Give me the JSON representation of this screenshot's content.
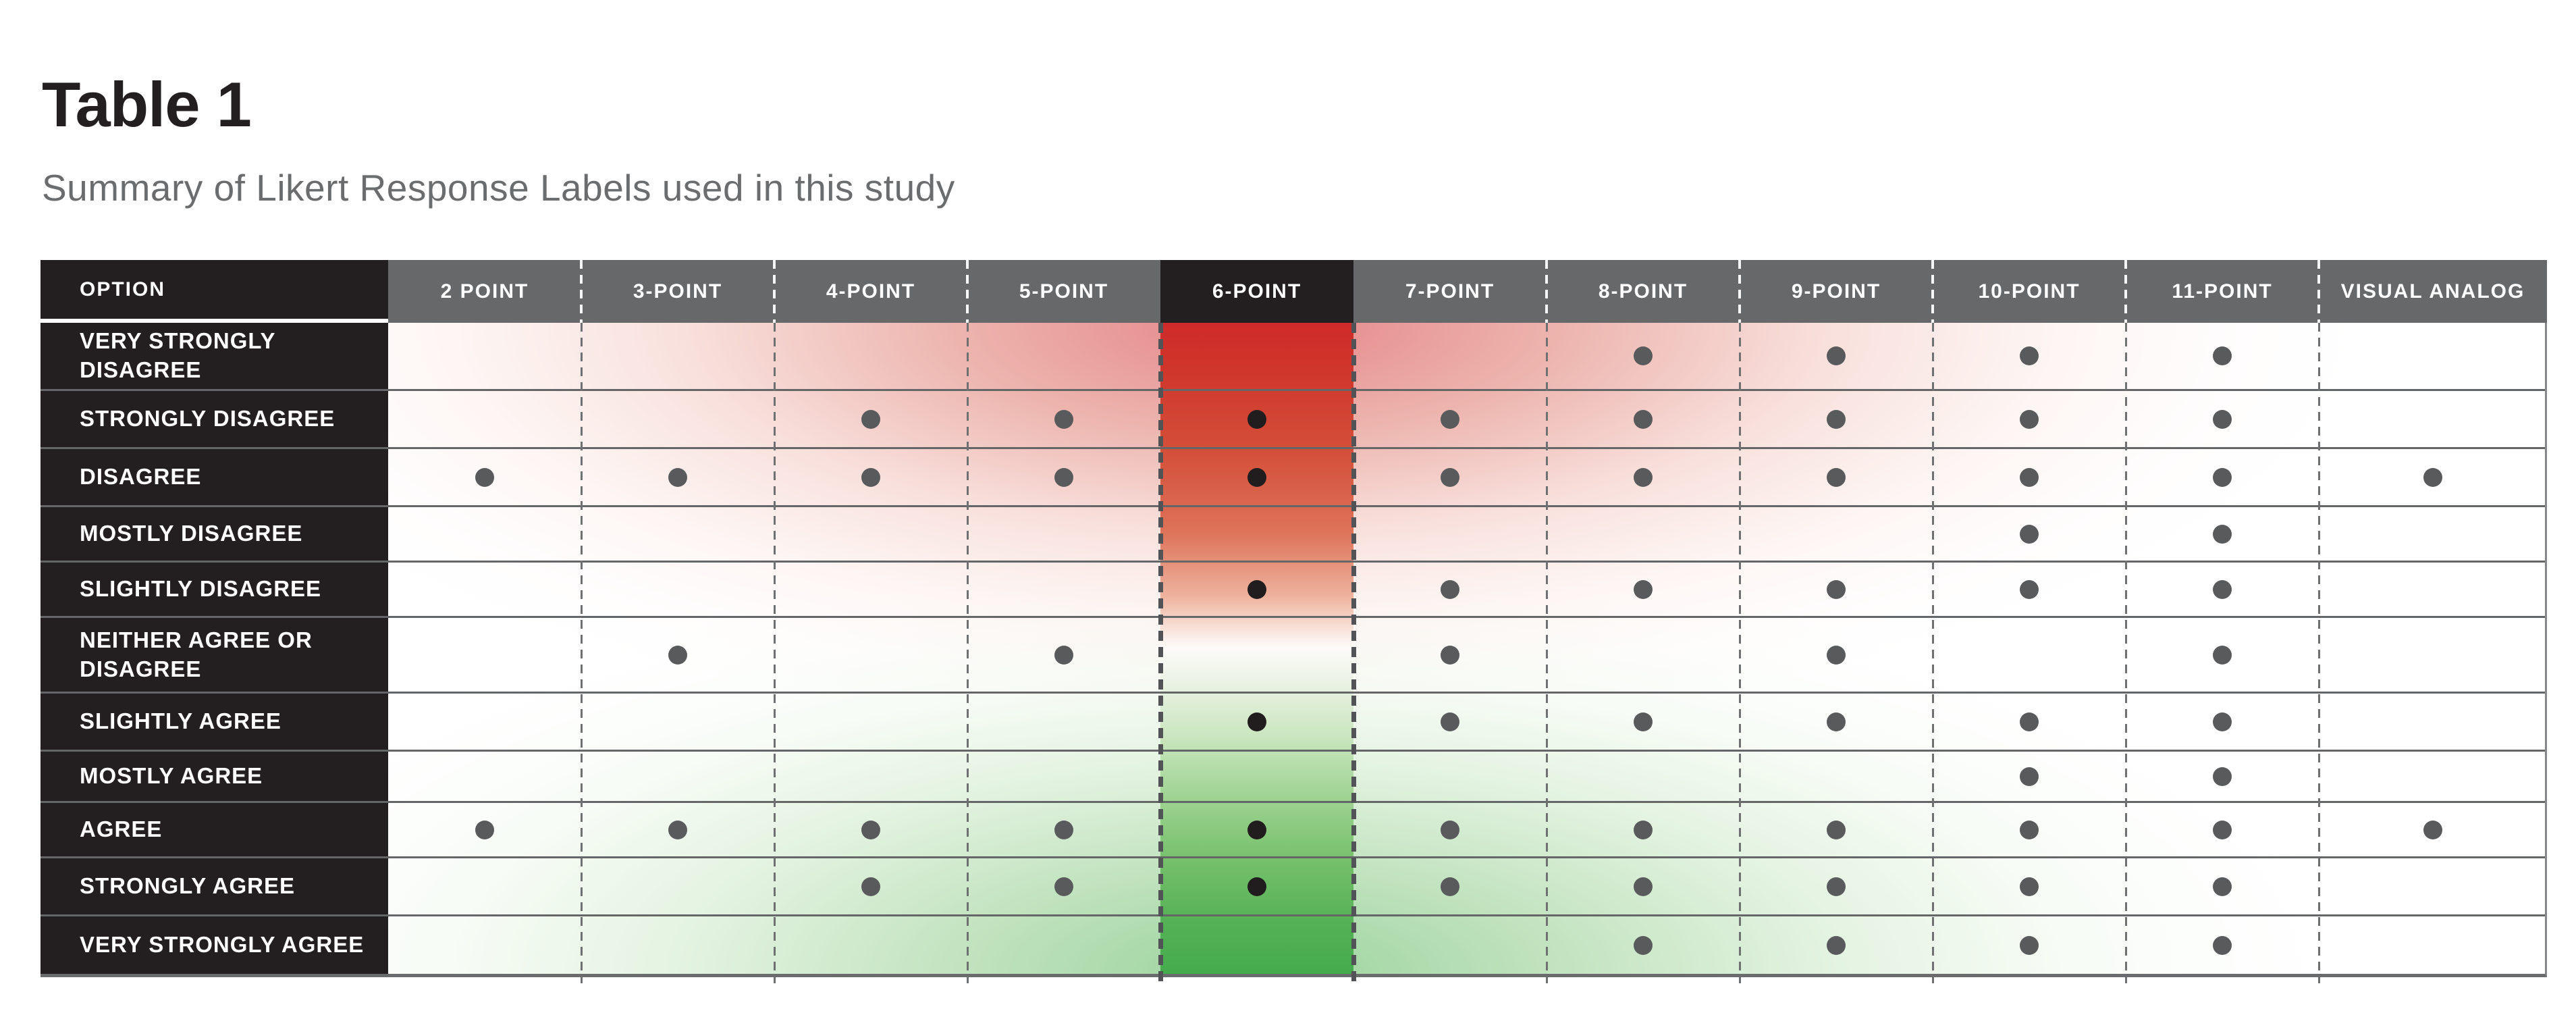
{
  "header": {
    "title": "Table 1",
    "subtitle": "Summary of Likert Response Labels used in this study"
  },
  "table": {
    "columns": [
      {
        "id": "option",
        "label": "OPTION",
        "highlight": true
      },
      {
        "id": "2-point",
        "label": "2 POINT",
        "highlight": false
      },
      {
        "id": "3-point",
        "label": "3-POINT",
        "highlight": false
      },
      {
        "id": "4-point",
        "label": "4-POINT",
        "highlight": false
      },
      {
        "id": "5-point",
        "label": "5-POINT",
        "highlight": false
      },
      {
        "id": "6-point",
        "label": "6-POINT",
        "highlight": true
      },
      {
        "id": "7-point",
        "label": "7-POINT",
        "highlight": false
      },
      {
        "id": "8-point",
        "label": "8-POINT",
        "highlight": false
      },
      {
        "id": "9-point",
        "label": "9-POINT",
        "highlight": false
      },
      {
        "id": "10-point",
        "label": "10-POINT",
        "highlight": false
      },
      {
        "id": "11-point",
        "label": "11-POINT",
        "highlight": false
      },
      {
        "id": "visual-analog",
        "label": "VISUAL ANALOG",
        "highlight": false
      }
    ],
    "rows": [
      {
        "label": "VERY STRONGLY DISAGREE",
        "dots": [
          "8-point",
          "9-point",
          "10-point",
          "11-point"
        ]
      },
      {
        "label": "STRONGLY DISAGREE",
        "dots": [
          "4-point",
          "5-point",
          "6-point",
          "7-point",
          "8-point",
          "9-point",
          "10-point",
          "11-point"
        ]
      },
      {
        "label": "DISAGREE",
        "dots": [
          "2-point",
          "3-point",
          "4-point",
          "5-point",
          "6-point",
          "7-point",
          "8-point",
          "9-point",
          "10-point",
          "11-point",
          "visual-analog"
        ]
      },
      {
        "label": "MOSTLY DISAGREE",
        "dots": [
          "10-point",
          "11-point"
        ]
      },
      {
        "label": "SLIGHTLY DISAGREE",
        "dots": [
          "6-point",
          "7-point",
          "8-point",
          "9-point",
          "10-point",
          "11-point"
        ]
      },
      {
        "label": "NEITHER AGREE OR DISAGREE",
        "dots": [
          "3-point",
          "5-point",
          "7-point",
          "9-point",
          "11-point"
        ]
      },
      {
        "label": "SLIGHTLY AGREE",
        "dots": [
          "6-point",
          "7-point",
          "8-point",
          "9-point",
          "10-point",
          "11-point"
        ]
      },
      {
        "label": "MOSTLY AGREE",
        "dots": [
          "10-point",
          "11-point"
        ]
      },
      {
        "label": "AGREE",
        "dots": [
          "2-point",
          "3-point",
          "4-point",
          "5-point",
          "6-point",
          "7-point",
          "8-point",
          "9-point",
          "10-point",
          "11-point",
          "visual-analog"
        ]
      },
      {
        "label": "STRONGLY AGREE",
        "dots": [
          "4-point",
          "5-point",
          "6-point",
          "7-point",
          "8-point",
          "9-point",
          "10-point",
          "11-point"
        ]
      },
      {
        "label": "VERY STRONGLY AGREE",
        "dots": [
          "8-point",
          "9-point",
          "10-point",
          "11-point"
        ]
      }
    ]
  },
  "colors": {
    "accent_red": "#cb2127",
    "accent_green": "#44ac4c",
    "header_gray": "#67686a",
    "cell_black": "#231e1f",
    "dot_gray": "#595a5c",
    "dot_black": "#211d1e",
    "title_black": "#231f20",
    "subtitle_gray": "#6b6c6e"
  }
}
